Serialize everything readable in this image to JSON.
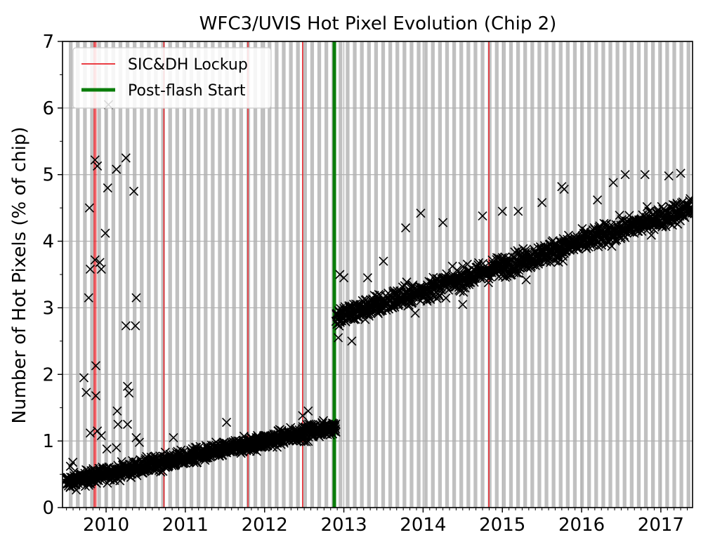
{
  "chart_data": {
    "type": "scatter",
    "title": "WFC3/UVIS Hot Pixel Evolution (Chip 2)",
    "xlabel": "",
    "ylabel": "Number of Hot Pixels (% of chip)",
    "xlim": [
      2009.45,
      2017.4
    ],
    "ylim": [
      0,
      7
    ],
    "xticks": [
      {
        "value": 2010,
        "label": "2010"
      },
      {
        "value": 2011,
        "label": "2011"
      },
      {
        "value": 2012,
        "label": "2012"
      },
      {
        "value": 2013,
        "label": "2013"
      },
      {
        "value": 2014,
        "label": "2014"
      },
      {
        "value": 2015,
        "label": "2015"
      },
      {
        "value": 2016,
        "label": "2016"
      },
      {
        "value": 2017,
        "label": "2017"
      }
    ],
    "yticks": [
      {
        "value": 0,
        "label": "0"
      },
      {
        "value": 1,
        "label": "1"
      },
      {
        "value": 2,
        "label": "2"
      },
      {
        "value": 3,
        "label": "3"
      },
      {
        "value": 4,
        "label": "4"
      },
      {
        "value": 5,
        "label": "5"
      },
      {
        "value": 6,
        "label": "6"
      },
      {
        "value": 7,
        "label": "7"
      }
    ],
    "grid": true,
    "anneal_bands": {
      "first": 2009.53,
      "period": 0.0896,
      "width": 0.047,
      "end": 2017.4,
      "color": "#c0c0c0"
    },
    "sicdh_lockups": [
      2009.85,
      2009.87,
      2010.73,
      2011.79,
      2012.48,
      2014.83
    ],
    "postflash_start": 2012.88,
    "legend": {
      "placement": "upper-left",
      "entries": [
        {
          "label": "SIC&DH Lockup",
          "color": "#e8242b",
          "style": "thin-line"
        },
        {
          "label": "Post-flash Start",
          "color": "#0a7d0a",
          "style": "thick-line"
        }
      ]
    },
    "series": [
      {
        "marker": "x",
        "color": "#000000",
        "segments": [
          {
            "x_start": 2009.5,
            "x_end": 2012.9,
            "y_start": 0.38,
            "y_end": 1.22,
            "spread": 0.11
          },
          {
            "x_start": 2012.9,
            "x_end": 2017.4,
            "y_start": 2.85,
            "y_end": 4.5,
            "spread": 0.16
          }
        ],
        "outliers": [
          [
            2009.52,
            0.45
          ],
          [
            2009.55,
            0.62
          ],
          [
            2009.58,
            0.68
          ],
          [
            2009.72,
            1.95
          ],
          [
            2009.75,
            1.73
          ],
          [
            2009.79,
            4.5
          ],
          [
            2009.78,
            3.15
          ],
          [
            2009.8,
            3.58
          ],
          [
            2009.8,
            1.12
          ],
          [
            2009.86,
            3.72
          ],
          [
            2009.86,
            5.22
          ],
          [
            2009.87,
            2.13
          ],
          [
            2009.87,
            1.68
          ],
          [
            2009.89,
            5.13
          ],
          [
            2009.89,
            1.15
          ],
          [
            2009.92,
            3.68
          ],
          [
            2009.94,
            3.58
          ],
          [
            2009.94,
            1.08
          ],
          [
            2009.99,
            4.12
          ],
          [
            2010.02,
            4.8
          ],
          [
            2010.03,
            6.05
          ],
          [
            2010.01,
            0.88
          ],
          [
            2010.13,
            5.08
          ],
          [
            2010.14,
            1.45
          ],
          [
            2010.15,
            1.25
          ],
          [
            2010.13,
            0.9
          ],
          [
            2010.25,
            5.25
          ],
          [
            2010.25,
            2.73
          ],
          [
            2010.27,
            1.82
          ],
          [
            2010.29,
            1.72
          ],
          [
            2010.27,
            1.25
          ],
          [
            2010.35,
            4.75
          ],
          [
            2010.37,
            2.73
          ],
          [
            2010.38,
            3.15
          ],
          [
            2010.38,
            1.05
          ],
          [
            2010.42,
            0.98
          ],
          [
            2010.85,
            1.05
          ],
          [
            2011.52,
            1.28
          ],
          [
            2012.48,
            1.38
          ],
          [
            2012.55,
            1.45
          ],
          [
            2012.95,
            3.5
          ],
          [
            2013.0,
            3.45
          ],
          [
            2013.3,
            3.45
          ],
          [
            2013.5,
            3.7
          ],
          [
            2013.78,
            4.2
          ],
          [
            2013.97,
            4.42
          ],
          [
            2014.25,
            4.28
          ],
          [
            2014.75,
            4.38
          ],
          [
            2015.0,
            4.45
          ],
          [
            2015.2,
            4.45
          ],
          [
            2015.5,
            4.58
          ],
          [
            2015.75,
            4.82
          ],
          [
            2015.78,
            4.78
          ],
          [
            2016.2,
            4.62
          ],
          [
            2016.4,
            4.88
          ],
          [
            2016.55,
            5.0
          ],
          [
            2016.8,
            5.0
          ],
          [
            2017.1,
            4.98
          ],
          [
            2017.25,
            5.02
          ],
          [
            2014.5,
            3.05
          ],
          [
            2013.9,
            2.92
          ],
          [
            2012.93,
            2.55
          ],
          [
            2013.1,
            2.5
          ],
          [
            2014.05,
            3.1
          ],
          [
            2015.3,
            3.42
          ]
        ]
      }
    ]
  }
}
